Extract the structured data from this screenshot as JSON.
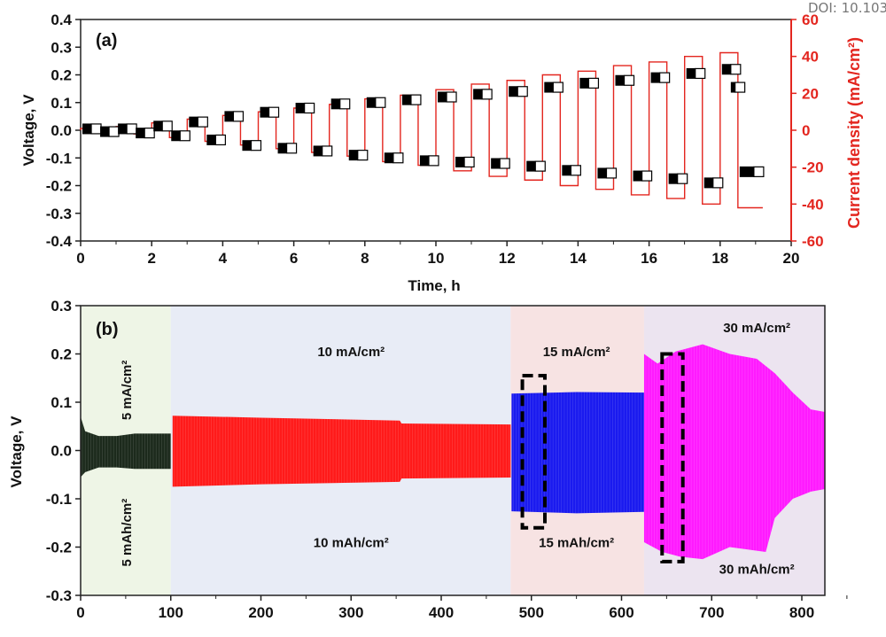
{
  "watermark": "DOI: 10.103",
  "chart_data": [
    {
      "type": "line",
      "panel_label": "(a)",
      "xlabel": "Time, h",
      "ylabel": "Voltage, V",
      "y2label": "Current density (mA/cm²)",
      "xlim": [
        0,
        20
      ],
      "ylim": [
        -0.4,
        0.4
      ],
      "y2lim": [
        -60,
        60
      ],
      "xticks": [
        "0",
        "2",
        "4",
        "6",
        "8",
        "10",
        "12",
        "14",
        "16",
        "18",
        "20"
      ],
      "yticks": [
        "0.4",
        "0.3",
        "0.2",
        "0.1",
        "0.0",
        "-0.1",
        "-0.2",
        "-0.3",
        "-0.4"
      ],
      "y2ticks": [
        "60",
        "40",
        "20",
        "0",
        "-20",
        "-40",
        "-60"
      ],
      "grid": false,
      "colors": {
        "voltage": "#000000",
        "current": "#e3261f"
      },
      "series": [
        {
          "role": "voltage",
          "hour_start": [
            0,
            1,
            2,
            3,
            4,
            5,
            6,
            7,
            8,
            9,
            10,
            11,
            12,
            13,
            14,
            15,
            16,
            17,
            18
          ],
          "positive_plateau_V": [
            0.005,
            0.005,
            0.015,
            0.03,
            0.05,
            0.065,
            0.08,
            0.095,
            0.1,
            0.11,
            0.12,
            0.13,
            0.14,
            0.155,
            0.17,
            0.18,
            0.19,
            0.205,
            0.22
          ],
          "negative_plateau_V": [
            -0.005,
            -0.01,
            -0.02,
            -0.035,
            -0.055,
            -0.065,
            -0.075,
            -0.09,
            -0.1,
            -0.11,
            -0.115,
            -0.12,
            -0.13,
            -0.145,
            -0.155,
            -0.165,
            -0.175,
            -0.19,
            -0.15
          ]
        },
        {
          "role": "current density",
          "hour_start": [
            0,
            1,
            2,
            3,
            4,
            5,
            6,
            7,
            8,
            9,
            10,
            11,
            12,
            13,
            14,
            15,
            16,
            17,
            18
          ],
          "amplitude_mA_cm2": [
            1,
            2,
            4,
            6,
            8,
            10,
            12,
            14,
            17,
            19,
            22,
            25,
            27,
            30,
            32,
            35,
            37,
            40,
            42
          ]
        }
      ]
    },
    {
      "type": "area",
      "panel_label": "(b)",
      "ylabel": "Voltage, V",
      "xlim": [
        0,
        825
      ],
      "ylim": [
        -0.3,
        0.3
      ],
      "xticks": [
        "0",
        "100",
        "200",
        "300",
        "400",
        "500",
        "600",
        "700",
        "800"
      ],
      "yticks": [
        "0.3",
        "0.2",
        "0.1",
        "0.0",
        "-0.1",
        "-0.2",
        "-0.3"
      ],
      "grid": false,
      "regions": [
        {
          "x": [
            0,
            100
          ],
          "bg": "#eef5e6",
          "color": "#1c2a1c",
          "top_label": "5 mA/cm²",
          "bottom_label": "5 mAh/cm²",
          "upper": [
            [
              0,
              0.07
            ],
            [
              5,
              0.04
            ],
            [
              20,
              0.03
            ],
            [
              40,
              0.03
            ],
            [
              60,
              0.035
            ],
            [
              100,
              0.035
            ]
          ],
          "lower": [
            [
              0,
              -0.055
            ],
            [
              5,
              -0.045
            ],
            [
              20,
              -0.035
            ],
            [
              40,
              -0.035
            ],
            [
              60,
              -0.038
            ],
            [
              100,
              -0.038
            ]
          ]
        },
        {
          "x": [
            100,
            477
          ],
          "bg": "#e8ecf6",
          "color": "#ff1a1a",
          "top_label": "10 mA/cm²",
          "bottom_label": "10 mAh/cm²",
          "upper": [
            [
              102,
              0.072
            ],
            [
              200,
              0.068
            ],
            [
              354,
              0.062
            ],
            [
              356,
              0.056
            ],
            [
              477,
              0.054
            ]
          ],
          "lower": [
            [
              102,
              -0.075
            ],
            [
              200,
              -0.07
            ],
            [
              354,
              -0.065
            ],
            [
              356,
              -0.058
            ],
            [
              477,
              -0.056
            ]
          ]
        },
        {
          "x": [
            477,
            625
          ],
          "bg": "#f7e3e3",
          "color": "#1a1aef",
          "top_label": "15 mA/cm²",
          "bottom_label": "15 mAh/cm²",
          "upper": [
            [
              478,
              0.118
            ],
            [
              550,
              0.121
            ],
            [
              625,
              0.12
            ]
          ],
          "lower": [
            [
              478,
              -0.126
            ],
            [
              550,
              -0.13
            ],
            [
              625,
              -0.127
            ]
          ]
        },
        {
          "x": [
            625,
            825
          ],
          "bg": "#ece4f0",
          "color": "#ff1aff",
          "top_label": "30 mA/cm²",
          "bottom_label": "30 mAh/cm²",
          "upper": [
            [
              625,
              0.2
            ],
            [
              640,
              0.18
            ],
            [
              660,
              0.205
            ],
            [
              690,
              0.22
            ],
            [
              720,
              0.2
            ],
            [
              750,
              0.19
            ],
            [
              770,
              0.16
            ],
            [
              790,
              0.12
            ],
            [
              810,
              0.085
            ],
            [
              825,
              0.08
            ]
          ],
          "lower": [
            [
              625,
              -0.19
            ],
            [
              645,
              -0.21
            ],
            [
              665,
              -0.22
            ],
            [
              690,
              -0.225
            ],
            [
              720,
              -0.2
            ],
            [
              760,
              -0.21
            ],
            [
              770,
              -0.14
            ],
            [
              790,
              -0.1
            ],
            [
              810,
              -0.085
            ],
            [
              825,
              -0.08
            ]
          ]
        }
      ],
      "highlight_boxes": [
        {
          "x": [
            490,
            515
          ],
          "y": [
            -0.16,
            0.155
          ]
        },
        {
          "x": [
            645,
            668
          ],
          "y": [
            -0.23,
            0.2
          ]
        }
      ]
    }
  ]
}
